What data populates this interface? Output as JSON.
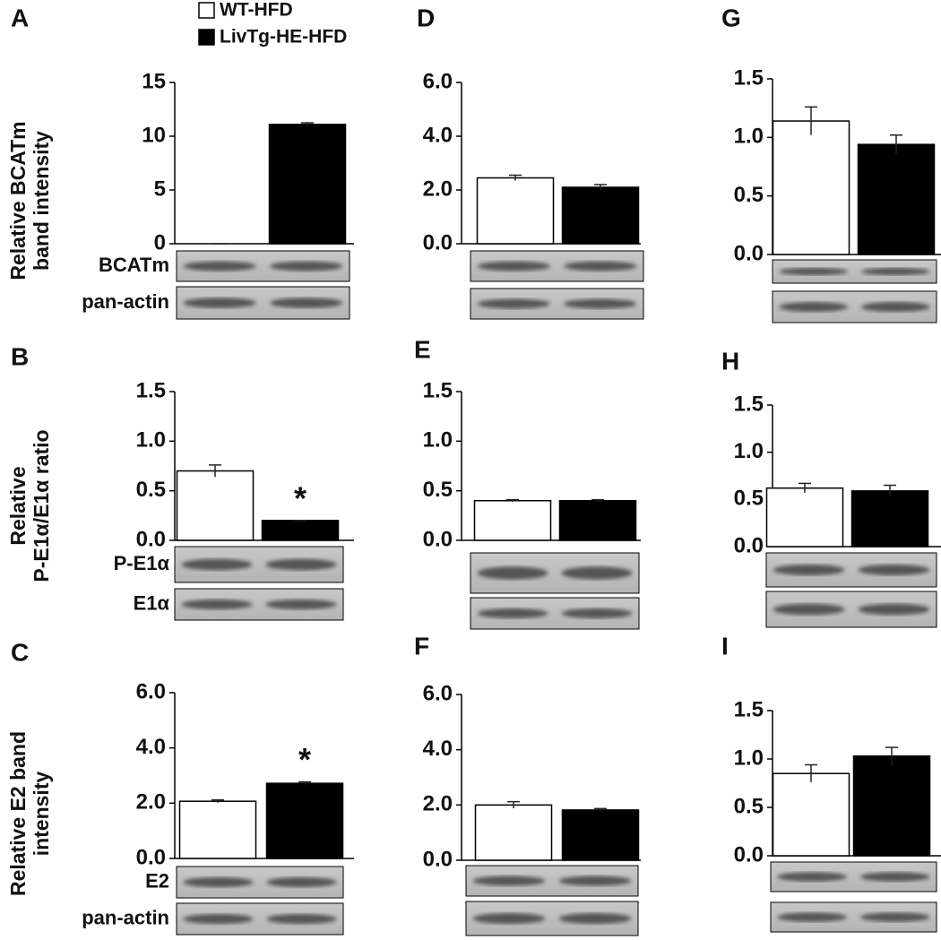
{
  "legend": [
    {
      "name": "WT-HFD",
      "color": "#ffffff"
    },
    {
      "name": "LivTg-HE-HFD",
      "color": "#000000"
    }
  ],
  "chart_data": [
    {
      "type": "bar",
      "panel": "A",
      "ylabel": [
        "Relative BCATm",
        "band  intensity"
      ],
      "values": [
        0,
        11.1
      ],
      "errors": [
        0,
        0.15
      ],
      "ylim": [
        0,
        15
      ],
      "yticks": [
        0,
        5,
        10,
        15
      ],
      "blots": [
        "BCATm",
        "pan-actin"
      ]
    },
    {
      "type": "bar",
      "panel": "B",
      "ylabel": [
        "Relative",
        "P-E1α/E1α ratio"
      ],
      "values": [
        0.7,
        0.2
      ],
      "errors": [
        0.06,
        0
      ],
      "ylim": [
        0,
        1.5
      ],
      "yticks": [
        {
          "value": 0,
          "label": "0.0"
        },
        0.5,
        {
          "value": 1,
          "label": "1.0"
        },
        1.5
      ],
      "blots": [
        "P-E1α",
        "E1α"
      ],
      "annotation": "*",
      "annotated": [
        false,
        true
      ]
    },
    {
      "type": "bar",
      "panel": "C",
      "ylabel": [
        "Relative E2 band",
        "intensity"
      ],
      "values": [
        2.07,
        2.72
      ],
      "errors": [
        0.05,
        0.05
      ],
      "ylim": [
        0,
        6
      ],
      "yticks": [
        {
          "value": 0,
          "label": "0.0"
        },
        {
          "value": 2,
          "label": "2.0"
        },
        {
          "value": 4,
          "label": "4.0"
        },
        {
          "value": 6,
          "label": "6.0"
        }
      ],
      "blots": [
        "E2",
        "pan-actin"
      ],
      "annotation": "*",
      "annotated": [
        false,
        true
      ]
    },
    {
      "type": "bar",
      "panel": "D",
      "values": [
        2.45,
        2.1
      ],
      "errors": [
        0.1,
        0.1
      ],
      "ylim": [
        0,
        6
      ],
      "yticks": [
        {
          "value": 0,
          "label": "0.0"
        },
        {
          "value": 2,
          "label": "2.0"
        },
        {
          "value": 4,
          "label": "4.0"
        },
        {
          "value": 6,
          "label": "6.0"
        }
      ]
    },
    {
      "type": "bar",
      "panel": "E",
      "values": [
        0.4,
        0.4
      ],
      "errors": [
        0.01,
        0.01
      ],
      "ylim": [
        0,
        1.5
      ],
      "yticks": [
        {
          "value": 0,
          "label": "0.0"
        },
        0.5,
        {
          "value": 1,
          "label": "1.0"
        },
        1.5
      ]
    },
    {
      "type": "bar",
      "panel": "F",
      "values": [
        2.0,
        1.82
      ],
      "errors": [
        0.12,
        0.05
      ],
      "ylim": [
        0,
        6
      ],
      "yticks": [
        {
          "value": 0,
          "label": "0.0"
        },
        {
          "value": 2,
          "label": "2.0"
        },
        {
          "value": 4,
          "label": "4.0"
        },
        {
          "value": 6,
          "label": "6.0"
        }
      ]
    },
    {
      "type": "bar",
      "panel": "G",
      "values": [
        1.14,
        0.94
      ],
      "errors": [
        0.12,
        0.08
      ],
      "ylim": [
        0,
        1.5
      ],
      "yticks": [
        {
          "value": 0,
          "label": "0.0"
        },
        0.5,
        {
          "value": 1,
          "label": "1.0"
        },
        1.5
      ]
    },
    {
      "type": "bar",
      "panel": "H",
      "values": [
        0.62,
        0.59
      ],
      "errors": [
        0.05,
        0.06
      ],
      "ylim": [
        0,
        1.5
      ],
      "yticks": [
        {
          "value": 0,
          "label": "0.0"
        },
        0.5,
        {
          "value": 1,
          "label": "1.0"
        },
        1.5
      ]
    },
    {
      "type": "bar",
      "panel": "I",
      "values": [
        0.85,
        1.03
      ],
      "errors": [
        0.09,
        0.09
      ],
      "ylim": [
        0,
        1.5
      ],
      "yticks": [
        {
          "value": 0,
          "label": "0.0"
        },
        0.5,
        {
          "value": 1,
          "label": "1.0"
        },
        1.5
      ]
    }
  ]
}
